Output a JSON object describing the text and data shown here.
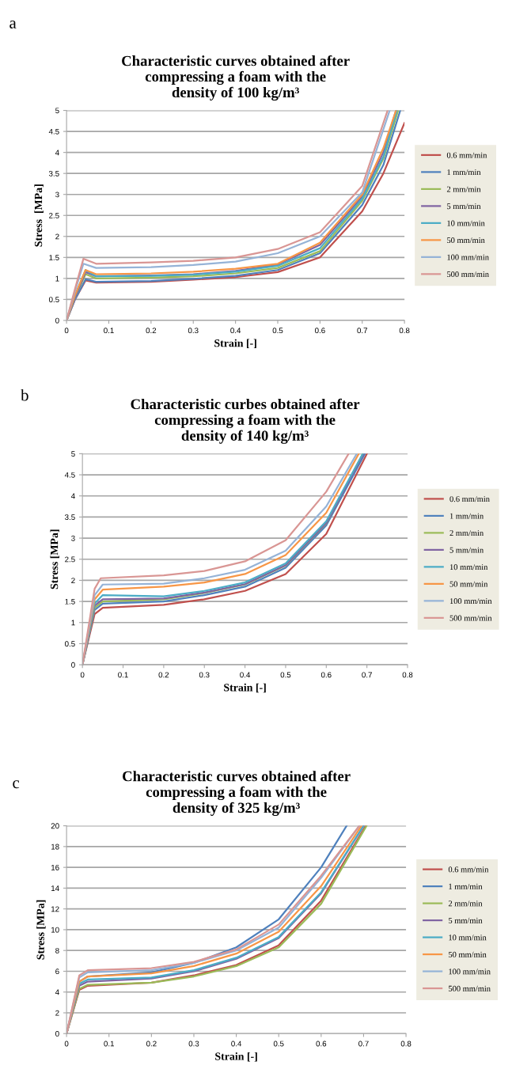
{
  "chart_data": [
    {
      "type": "line",
      "title": "Characteristic curves obtained after\ncompressing a foam with the\ndensity of 100 kg/m³",
      "xlabel": "Strain [-]",
      "ylabel": "Stress  [MPa]",
      "annotations": [
        "a"
      ],
      "xlim": [
        0,
        0.8
      ],
      "xticks": [
        0,
        0.1,
        0.2,
        0.3,
        0.4,
        0.5,
        0.6,
        0.7,
        0.8
      ],
      "ylim": [
        0,
        5
      ],
      "yticks": [
        0,
        0.5,
        1,
        1.5,
        2,
        2.5,
        3,
        3.5,
        4,
        4.5,
        5
      ],
      "grid": "y",
      "legend": "right",
      "marker": "none",
      "line_style": "solid",
      "series": [
        {
          "name": "0.6 mm/min",
          "color": "#c0504d",
          "x": [
            0,
            0.02,
            0.045,
            0.07,
            0.2,
            0.3,
            0.4,
            0.5,
            0.6,
            0.7,
            0.75,
            0.8
          ],
          "values": [
            0,
            0.5,
            0.95,
            0.9,
            0.92,
            0.97,
            1.03,
            1.15,
            1.5,
            2.6,
            3.5,
            4.7
          ]
        },
        {
          "name": "1 mm/min",
          "color": "#4f81bd",
          "x": [
            0,
            0.02,
            0.045,
            0.07,
            0.2,
            0.3,
            0.4,
            0.5,
            0.6,
            0.7,
            0.75,
            0.79
          ],
          "values": [
            0,
            0.5,
            0.98,
            0.92,
            0.94,
            0.99,
            1.06,
            1.2,
            1.6,
            2.75,
            3.7,
            5
          ]
        },
        {
          "name": "2 mm/min",
          "color": "#9bbb59",
          "x": [
            0,
            0.02,
            0.045,
            0.07,
            0.2,
            0.3,
            0.4,
            0.5,
            0.6,
            0.7,
            0.75,
            0.785
          ],
          "values": [
            0,
            0.55,
            1.1,
            1.0,
            1.02,
            1.05,
            1.12,
            1.25,
            1.65,
            2.85,
            3.85,
            5
          ]
        },
        {
          "name": "5 mm/min",
          "color": "#8064a2",
          "x": [
            0,
            0.02,
            0.045,
            0.07,
            0.2,
            0.3,
            0.4,
            0.5,
            0.6,
            0.7,
            0.75,
            0.78
          ],
          "values": [
            0,
            0.55,
            1.15,
            1.05,
            1.07,
            1.1,
            1.18,
            1.33,
            1.8,
            2.95,
            4.0,
            5
          ]
        },
        {
          "name": "10 mm/min",
          "color": "#4bacc6",
          "x": [
            0,
            0.02,
            0.045,
            0.07,
            0.2,
            0.3,
            0.4,
            0.5,
            0.6,
            0.7,
            0.75,
            0.782
          ],
          "values": [
            0,
            0.6,
            1.2,
            1.05,
            1.06,
            1.09,
            1.16,
            1.3,
            1.72,
            2.9,
            3.9,
            5
          ]
        },
        {
          "name": "50 mm/min",
          "color": "#f79646",
          "x": [
            0,
            0.02,
            0.045,
            0.07,
            0.2,
            0.3,
            0.4,
            0.5,
            0.6,
            0.7,
            0.75,
            0.78
          ],
          "values": [
            0,
            0.6,
            1.2,
            1.1,
            1.12,
            1.16,
            1.23,
            1.35,
            1.85,
            3.0,
            4.1,
            5
          ]
        },
        {
          "name": "100 mm/min",
          "color": "#95b3d7",
          "x": [
            0,
            0.02,
            0.04,
            0.07,
            0.2,
            0.3,
            0.4,
            0.5,
            0.6,
            0.7,
            0.765
          ],
          "values": [
            0,
            0.7,
            1.35,
            1.25,
            1.27,
            1.32,
            1.4,
            1.6,
            2.0,
            3.05,
            5
          ]
        },
        {
          "name": "500 mm/min",
          "color": "#d99694",
          "x": [
            0,
            0.02,
            0.04,
            0.07,
            0.2,
            0.3,
            0.4,
            0.5,
            0.6,
            0.7,
            0.76
          ],
          "values": [
            0,
            0.75,
            1.47,
            1.35,
            1.38,
            1.42,
            1.5,
            1.7,
            2.1,
            3.2,
            5
          ]
        }
      ]
    },
    {
      "type": "line",
      "title": "Characteristic curbes obtained after\ncompressing a foam with the\ndensity of 140 kg/m³",
      "xlabel": "Strain [-]",
      "ylabel": "Stress [MPa]",
      "annotations": [
        "b"
      ],
      "xlim": [
        0,
        0.8
      ],
      "xticks": [
        0,
        0.1,
        0.2,
        0.3,
        0.4,
        0.5,
        0.6,
        0.7,
        0.8
      ],
      "ylim": [
        0,
        5
      ],
      "yticks": [
        0,
        0.5,
        1,
        1.5,
        2,
        2.5,
        3,
        3.5,
        4,
        4.5,
        5
      ],
      "grid": "y",
      "legend": "right",
      "marker": "none",
      "line_style": "solid",
      "series": [
        {
          "name": "0.6 mm/min",
          "color": "#c0504d",
          "x": [
            0,
            0.03,
            0.05,
            0.2,
            0.3,
            0.4,
            0.5,
            0.6,
            0.7
          ],
          "values": [
            0,
            1.2,
            1.35,
            1.42,
            1.55,
            1.75,
            2.15,
            3.1,
            5
          ]
        },
        {
          "name": "1 mm/min",
          "color": "#4f81bd",
          "x": [
            0,
            0.03,
            0.05,
            0.2,
            0.3,
            0.4,
            0.5,
            0.6,
            0.695
          ],
          "values": [
            0,
            1.3,
            1.45,
            1.5,
            1.65,
            1.85,
            2.3,
            3.3,
            5
          ]
        },
        {
          "name": "2 mm/min",
          "color": "#9bbb59",
          "x": [
            0,
            0.03,
            0.05,
            0.2,
            0.3,
            0.4,
            0.5,
            0.6,
            0.69
          ],
          "values": [
            0,
            1.35,
            1.5,
            1.55,
            1.7,
            1.9,
            2.35,
            3.35,
            5
          ]
        },
        {
          "name": "5 mm/min",
          "color": "#8064a2",
          "x": [
            0,
            0.03,
            0.05,
            0.2,
            0.3,
            0.4,
            0.5,
            0.6,
            0.692
          ],
          "values": [
            0,
            1.4,
            1.55,
            1.57,
            1.71,
            1.91,
            2.36,
            3.36,
            5
          ]
        },
        {
          "name": "10 mm/min",
          "color": "#4bacc6",
          "x": [
            0,
            0.03,
            0.05,
            0.2,
            0.3,
            0.4,
            0.5,
            0.6,
            0.69
          ],
          "values": [
            0,
            1.45,
            1.65,
            1.62,
            1.75,
            1.95,
            2.4,
            3.4,
            5
          ]
        },
        {
          "name": "50 mm/min",
          "color": "#f79646",
          "x": [
            0,
            0.03,
            0.05,
            0.2,
            0.3,
            0.4,
            0.5,
            0.6,
            0.68
          ],
          "values": [
            0,
            1.55,
            1.78,
            1.85,
            1.95,
            2.15,
            2.6,
            3.6,
            5
          ]
        },
        {
          "name": "100 mm/min",
          "color": "#95b3d7",
          "x": [
            0,
            0.03,
            0.05,
            0.2,
            0.3,
            0.4,
            0.5,
            0.6,
            0.675
          ],
          "values": [
            0,
            1.65,
            1.9,
            1.92,
            2.05,
            2.25,
            2.7,
            3.75,
            5
          ]
        },
        {
          "name": "500 mm/min",
          "color": "#d99694",
          "x": [
            0,
            0.03,
            0.045,
            0.2,
            0.3,
            0.4,
            0.5,
            0.6,
            0.655
          ],
          "values": [
            0,
            1.8,
            2.05,
            2.12,
            2.22,
            2.45,
            2.95,
            4.1,
            5
          ]
        }
      ]
    },
    {
      "type": "line",
      "title": "Characteristic curves obtained after\ncompressing a foam with the\ndensity of 325 kg/m³",
      "xlabel": "Strain [-]",
      "ylabel": "Stress [MPa]",
      "annotations": [
        "c"
      ],
      "xlim": [
        0,
        0.8
      ],
      "xticks": [
        0,
        0.1,
        0.2,
        0.3,
        0.4,
        0.5,
        0.6,
        0.7,
        0.8
      ],
      "ylim": [
        0,
        20
      ],
      "yticks": [
        0,
        2,
        4,
        6,
        8,
        10,
        12,
        14,
        16,
        18,
        20
      ],
      "grid": "y",
      "legend": "right",
      "marker": "none",
      "line_style": "solid",
      "series": [
        {
          "name": "0.6 mm/min",
          "color": "#c0504d",
          "x": [
            0,
            0.03,
            0.05,
            0.2,
            0.3,
            0.4,
            0.5,
            0.6,
            0.705
          ],
          "values": [
            0,
            4.2,
            4.6,
            4.9,
            5.6,
            6.6,
            8.5,
            12.8,
            20
          ]
        },
        {
          "name": "1 mm/min",
          "color": "#4f81bd",
          "x": [
            0,
            0.03,
            0.05,
            0.2,
            0.3,
            0.4,
            0.5,
            0.6,
            0.66
          ],
          "values": [
            0,
            5.0,
            5.5,
            5.9,
            6.8,
            8.3,
            11,
            16,
            20
          ]
        },
        {
          "name": "2 mm/min",
          "color": "#9bbb59",
          "x": [
            0,
            0.03,
            0.05,
            0.2,
            0.3,
            0.4,
            0.5,
            0.6,
            0.707
          ],
          "values": [
            0,
            4.3,
            4.7,
            4.9,
            5.5,
            6.5,
            8.3,
            12.5,
            20
          ]
        },
        {
          "name": "5 mm/min",
          "color": "#8064a2",
          "x": [
            0,
            0.03,
            0.05,
            0.2,
            0.3,
            0.4,
            0.5,
            0.6,
            0.7
          ],
          "values": [
            0,
            4.6,
            5.0,
            5.3,
            6.0,
            7.2,
            9.2,
            13.5,
            20
          ]
        },
        {
          "name": "10 mm/min",
          "color": "#4bacc6",
          "x": [
            0,
            0.03,
            0.05,
            0.2,
            0.3,
            0.4,
            0.5,
            0.6,
            0.7
          ],
          "values": [
            0,
            4.8,
            5.2,
            5.4,
            6.1,
            7.3,
            9.3,
            13.6,
            20
          ]
        },
        {
          "name": "50 mm/min",
          "color": "#f79646",
          "x": [
            0,
            0.03,
            0.05,
            0.2,
            0.3,
            0.4,
            0.5,
            0.6,
            0.695
          ],
          "values": [
            0,
            5.0,
            5.5,
            5.8,
            6.5,
            7.7,
            9.8,
            14.2,
            20
          ]
        },
        {
          "name": "100 mm/min",
          "color": "#95b3d7",
          "x": [
            0,
            0.03,
            0.05,
            0.2,
            0.3,
            0.4,
            0.5,
            0.6,
            0.69
          ],
          "values": [
            0,
            5.4,
            5.9,
            6.1,
            6.8,
            8.0,
            10.2,
            15,
            20
          ]
        },
        {
          "name": "500 mm/min",
          "color": "#d99694",
          "x": [
            0,
            0.03,
            0.05,
            0.2,
            0.3,
            0.4,
            0.5,
            0.6,
            0.69
          ],
          "values": [
            0,
            5.6,
            6.1,
            6.3,
            6.9,
            8.1,
            10.5,
            15.2,
            20
          ]
        }
      ]
    }
  ]
}
